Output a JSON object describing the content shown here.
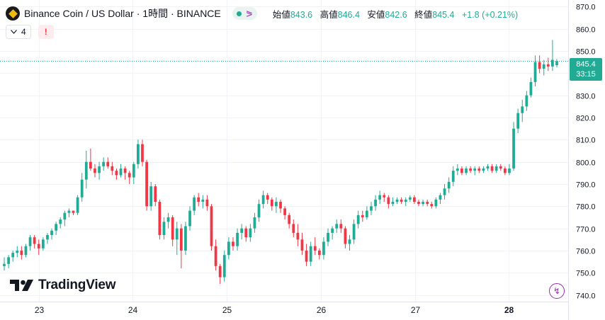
{
  "legend": {
    "title": "Binance Coin / US Dollar · 1時間 · BINANCE",
    "open_label": "始値",
    "open": "843.6",
    "high_label": "高値",
    "high": "846.4",
    "low_label": "安値",
    "low": "842.6",
    "close_label": "終値",
    "close": "845.4",
    "change": "+1.8 (+0.21%)"
  },
  "indicators_count": "4",
  "warning_glyph": "!",
  "price_badge": {
    "price": "845.4",
    "countdown": "33:15"
  },
  "branding": "TradingView",
  "colors": {
    "up": "#22ab94",
    "down": "#f23645",
    "accent": "#9c27b0"
  },
  "icons": [
    "chevron-down-icon",
    "warning-icon",
    "share-icon",
    "tradingview-logo-icon",
    "lightning-icon"
  ],
  "chart_data": {
    "type": "candlestick",
    "y_ticks": [
      740,
      750,
      760,
      770,
      780,
      790,
      800,
      810,
      820,
      830,
      840,
      850,
      860,
      870
    ],
    "y_tick_labels": [
      "740.0",
      "750.0",
      "760.0",
      "770.0",
      "780.0",
      "790.0",
      "800.0",
      "810.0",
      "820.0",
      "830.0",
      "840.0",
      "850.0",
      "860.0",
      "870.0"
    ],
    "ylim": [
      737,
      873
    ],
    "x_tick_labels": [
      "23",
      "24",
      "25",
      "26",
      "27",
      "28"
    ],
    "grid": true,
    "current_price": 845.4,
    "candles": [
      [
        753,
        757,
        751,
        754
      ],
      [
        754,
        758,
        752,
        757
      ],
      [
        757,
        760,
        755,
        759
      ],
      [
        759,
        762,
        757,
        760
      ],
      [
        760,
        762,
        756,
        758
      ],
      [
        758,
        763,
        757,
        762
      ],
      [
        762,
        767,
        760,
        766
      ],
      [
        766,
        767,
        761,
        763
      ],
      [
        763,
        765,
        758,
        761
      ],
      [
        761,
        766,
        760,
        765
      ],
      [
        765,
        768,
        763,
        767
      ],
      [
        767,
        770,
        765,
        769
      ],
      [
        769,
        773,
        767,
        772
      ],
      [
        772,
        775,
        770,
        774
      ],
      [
        774,
        778,
        771,
        777
      ],
      [
        777,
        779,
        775,
        778
      ],
      [
        778,
        778,
        776,
        777
      ],
      [
        777,
        785,
        776,
        784
      ],
      [
        784,
        795,
        782,
        792
      ],
      [
        792,
        805,
        788,
        800
      ],
      [
        800,
        806,
        796,
        797
      ],
      [
        797,
        799,
        793,
        795
      ],
      [
        795,
        800,
        792,
        798
      ],
      [
        798,
        802,
        796,
        800
      ],
      [
        800,
        802,
        797,
        798
      ],
      [
        798,
        800,
        794,
        796
      ],
      [
        796,
        797,
        792,
        794
      ],
      [
        794,
        799,
        793,
        797
      ],
      [
        797,
        798,
        792,
        795
      ],
      [
        795,
        796,
        790,
        793
      ],
      [
        793,
        800,
        790,
        799
      ],
      [
        799,
        810,
        797,
        808
      ],
      [
        808,
        810,
        798,
        800
      ],
      [
        800,
        801,
        778,
        780
      ],
      [
        780,
        791,
        778,
        789
      ],
      [
        789,
        790,
        780,
        782
      ],
      [
        782,
        783,
        765,
        767
      ],
      [
        767,
        775,
        765,
        773
      ],
      [
        773,
        777,
        770,
        775
      ],
      [
        775,
        776,
        762,
        765
      ],
      [
        765,
        773,
        758,
        770
      ],
      [
        770,
        772,
        752,
        760
      ],
      [
        760,
        773,
        758,
        771
      ],
      [
        771,
        780,
        769,
        778
      ],
      [
        778,
        785,
        776,
        784
      ],
      [
        784,
        786,
        780,
        782
      ],
      [
        782,
        785,
        779,
        783
      ],
      [
        783,
        785,
        778,
        780
      ],
      [
        780,
        781,
        760,
        762
      ],
      [
        762,
        765,
        751,
        753
      ],
      [
        753,
        754,
        745,
        748
      ],
      [
        748,
        760,
        746,
        758
      ],
      [
        758,
        766,
        756,
        764
      ],
      [
        764,
        766,
        760,
        762
      ],
      [
        762,
        770,
        760,
        768
      ],
      [
        768,
        772,
        765,
        770
      ],
      [
        770,
        771,
        764,
        766
      ],
      [
        766,
        772,
        764,
        770
      ],
      [
        770,
        777,
        768,
        775
      ],
      [
        775,
        783,
        773,
        781
      ],
      [
        781,
        787,
        779,
        785
      ],
      [
        785,
        786,
        781,
        783
      ],
      [
        783,
        784,
        778,
        780
      ],
      [
        780,
        784,
        777,
        782
      ],
      [
        782,
        783,
        777,
        779
      ],
      [
        779,
        780,
        774,
        776
      ],
      [
        776,
        777,
        770,
        772
      ],
      [
        772,
        774,
        766,
        768
      ],
      [
        768,
        772,
        762,
        765
      ],
      [
        765,
        768,
        758,
        760
      ],
      [
        760,
        763,
        753,
        755
      ],
      [
        755,
        764,
        753,
        762
      ],
      [
        762,
        766,
        758,
        760
      ],
      [
        760,
        761,
        756,
        758
      ],
      [
        758,
        766,
        756,
        764
      ],
      [
        764,
        770,
        762,
        768
      ],
      [
        768,
        771,
        765,
        770
      ],
      [
        770,
        774,
        768,
        772
      ],
      [
        772,
        774,
        768,
        770
      ],
      [
        770,
        771,
        761,
        763
      ],
      [
        763,
        767,
        760,
        765
      ],
      [
        765,
        774,
        763,
        772
      ],
      [
        772,
        778,
        770,
        776
      ],
      [
        776,
        778,
        773,
        775
      ],
      [
        775,
        780,
        774,
        778
      ],
      [
        778,
        782,
        776,
        780
      ],
      [
        780,
        785,
        778,
        783
      ],
      [
        783,
        787,
        781,
        785
      ],
      [
        785,
        786,
        782,
        784
      ],
      [
        784,
        785,
        779,
        781
      ],
      [
        781,
        784,
        780,
        782
      ],
      [
        782,
        784,
        781,
        783
      ],
      [
        783,
        784,
        781,
        782
      ],
      [
        782,
        784,
        780,
        783
      ],
      [
        783,
        785,
        782,
        784
      ],
      [
        784,
        785,
        781,
        782
      ],
      [
        782,
        783,
        780,
        781
      ],
      [
        781,
        783,
        780,
        782
      ],
      [
        782,
        783,
        780,
        781
      ],
      [
        781,
        782,
        779,
        780
      ],
      [
        780,
        784,
        779,
        783
      ],
      [
        783,
        786,
        781,
        785
      ],
      [
        785,
        790,
        783,
        788
      ],
      [
        788,
        793,
        786,
        791
      ],
      [
        791,
        798,
        789,
        796
      ],
      [
        796,
        799,
        794,
        797
      ],
      [
        797,
        798,
        794,
        795
      ],
      [
        795,
        798,
        794,
        797
      ],
      [
        797,
        798,
        795,
        796
      ],
      [
        796,
        798,
        794,
        797
      ],
      [
        797,
        798,
        795,
        796
      ],
      [
        796,
        798,
        795,
        797
      ],
      [
        797,
        799,
        796,
        798
      ],
      [
        798,
        799,
        795,
        796
      ],
      [
        796,
        799,
        795,
        798
      ],
      [
        798,
        799,
        796,
        797
      ],
      [
        797,
        798,
        794,
        795
      ],
      [
        795,
        799,
        794,
        797
      ],
      [
        797,
        818,
        796,
        815
      ],
      [
        815,
        824,
        813,
        822
      ],
      [
        822,
        828,
        818,
        825
      ],
      [
        825,
        832,
        823,
        830
      ],
      [
        830,
        838,
        829,
        836
      ],
      [
        836,
        848,
        834,
        845
      ],
      [
        845,
        848,
        840,
        842
      ],
      [
        842,
        846,
        839,
        844
      ],
      [
        844,
        847,
        841,
        843
      ],
      [
        843,
        855,
        841,
        846
      ],
      [
        843.6,
        846.4,
        842.6,
        845.4
      ]
    ]
  }
}
